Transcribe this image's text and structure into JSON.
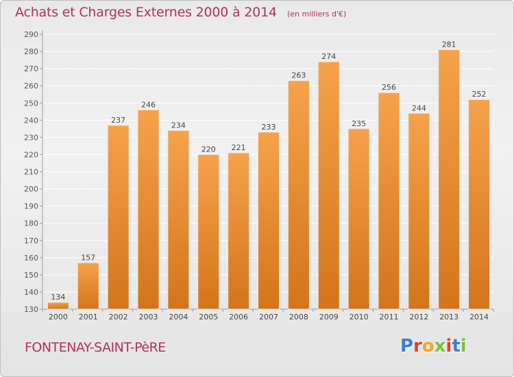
{
  "header": {
    "title": "Achats et Charges Externes 2000 à 2014",
    "subtitle": "(en milliers d'€)"
  },
  "footer": {
    "commune": "FONTENAY-SAINT-PèRE",
    "logo_text": "Proxiti"
  },
  "colors": {
    "title": "#b03060",
    "bar_top": "#f6a24b",
    "bar_bottom": "#d4741a",
    "logo": [
      "#3a7fd0",
      "#e0402a",
      "#f5a623",
      "#7cbf3a",
      "#e0402a",
      "#3a7fd0",
      "#7cbf3a"
    ]
  },
  "chart_data": {
    "type": "bar",
    "title": "Achats et Charges Externes 2000 à 2014",
    "subtitle": "(en milliers d'€)",
    "categories": [
      "2000",
      "2001",
      "2002",
      "2003",
      "2004",
      "2005",
      "2006",
      "2007",
      "2008",
      "2009",
      "2010",
      "2011",
      "2012",
      "2013",
      "2014"
    ],
    "values": [
      134,
      157,
      237,
      246,
      234,
      220,
      221,
      233,
      263,
      274,
      235,
      256,
      244,
      281,
      252
    ],
    "ylim": [
      130,
      290
    ],
    "yticks": [
      130,
      140,
      150,
      160,
      170,
      180,
      190,
      200,
      210,
      220,
      230,
      240,
      250,
      260,
      270,
      280,
      290
    ],
    "grid": true,
    "xlabel": "",
    "ylabel": ""
  }
}
